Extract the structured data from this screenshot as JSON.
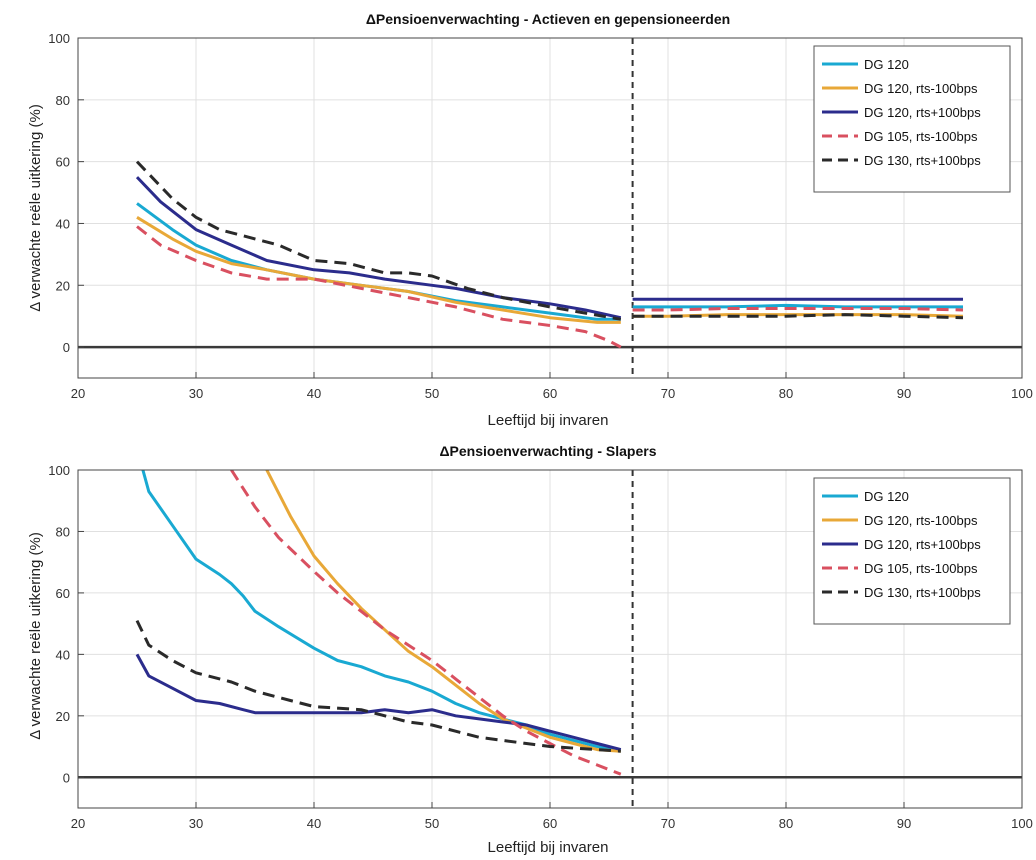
{
  "colors": {
    "DG 120": "#19a9d2",
    "DG 120, rts-100bps": "#e8a838",
    "DG 120, rts+100bps": "#2b2c8c",
    "DG 105, rts-100bps": "#d95060",
    "DG 130, rts+100bps": "#2a2a2a",
    "zero_line": "#3a3a3a",
    "grid": "#e0e0e0",
    "vline": "#333333"
  },
  "chart_data": [
    {
      "type": "line",
      "title": "ΔPensioenverwachting - Actieven en gepensioneerden",
      "xlabel": "Leeftijd bij invaren",
      "ylabel": "Δ verwachte reële uitkering (%)",
      "xlim": [
        20,
        100
      ],
      "ylim": [
        -10,
        100
      ],
      "xticks": [
        20,
        30,
        40,
        50,
        60,
        70,
        80,
        90,
        100
      ],
      "yticks": [
        0,
        20,
        40,
        60,
        80,
        100
      ],
      "grid": true,
      "legend_position": "top-right",
      "vline_x": 67,
      "zero_line": true,
      "series": [
        {
          "name": "DG 120",
          "dash": "solid",
          "segments": [
            {
              "x": [
                25,
                28,
                30,
                33,
                36,
                40,
                44,
                48,
                52,
                56,
                60,
                64,
                66
              ],
              "y": [
                46.5,
                38,
                33,
                28,
                25,
                22,
                20,
                18,
                15,
                13,
                11,
                9,
                9
              ]
            },
            {
              "x": [
                67,
                70,
                75,
                80,
                85,
                90,
                95
              ],
              "y": [
                13,
                13,
                13,
                13.5,
                13,
                13,
                13
              ]
            }
          ]
        },
        {
          "name": "DG 120, rts-100bps",
          "dash": "solid",
          "segments": [
            {
              "x": [
                25,
                28,
                30,
                33,
                36,
                40,
                44,
                48,
                52,
                56,
                60,
                64,
                66
              ],
              "y": [
                42,
                35,
                31,
                27,
                25,
                22,
                20,
                18,
                14.5,
                12,
                9.5,
                8,
                8
              ]
            },
            {
              "x": [
                67,
                70,
                75,
                80,
                85,
                90,
                95
              ],
              "y": [
                10,
                10,
                10.5,
                10.5,
                10.5,
                10.5,
                10
              ]
            }
          ]
        },
        {
          "name": "DG 120, rts+100bps",
          "dash": "solid",
          "segments": [
            {
              "x": [
                25,
                27,
                30,
                33,
                36,
                40,
                43,
                46,
                50,
                52,
                56,
                60,
                63,
                66
              ],
              "y": [
                55,
                47,
                38,
                33,
                28,
                25,
                24,
                22,
                20,
                19,
                16,
                14,
                12,
                9.5
              ]
            },
            {
              "x": [
                67,
                70,
                75,
                80,
                85,
                90,
                95
              ],
              "y": [
                15.5,
                15.5,
                15.5,
                15.5,
                15.5,
                15.5,
                15.5
              ]
            }
          ]
        },
        {
          "name": "DG 105, rts-100bps",
          "dash": "dashed",
          "segments": [
            {
              "x": [
                25,
                27,
                30,
                33,
                36,
                40,
                44,
                48,
                52,
                56,
                60,
                63,
                65,
                66
              ],
              "y": [
                39,
                33,
                28,
                24,
                22,
                22,
                19,
                16,
                13,
                9,
                7,
                5,
                2,
                0
              ]
            },
            {
              "x": [
                67,
                70,
                75,
                80,
                85,
                90,
                95
              ],
              "y": [
                12,
                12,
                12.5,
                12.5,
                12.5,
                12.5,
                12
              ]
            }
          ]
        },
        {
          "name": "DG 130, rts+100bps",
          "dash": "dashed",
          "segments": [
            {
              "x": [
                25,
                28,
                30,
                32,
                35,
                37,
                40,
                43,
                46,
                48,
                50,
                53,
                56,
                60,
                63,
                66
              ],
              "y": [
                60,
                48,
                42,
                38,
                35,
                33,
                28,
                27,
                24,
                24,
                23,
                19,
                16,
                13,
                11,
                9
              ]
            },
            {
              "x": [
                67,
                70,
                75,
                80,
                85,
                90,
                95
              ],
              "y": [
                10,
                10,
                10,
                10,
                10.5,
                10,
                9.5
              ]
            }
          ]
        }
      ]
    },
    {
      "type": "line",
      "title": "ΔPensioenverwachting - Slapers",
      "xlabel": "Leeftijd bij invaren",
      "ylabel": "Δ verwachte reële uitkering (%)",
      "xlim": [
        20,
        100
      ],
      "ylim": [
        -10,
        100
      ],
      "xticks": [
        20,
        30,
        40,
        50,
        60,
        70,
        80,
        90,
        100
      ],
      "yticks": [
        0,
        20,
        40,
        60,
        80,
        100
      ],
      "grid": true,
      "legend_position": "top-right",
      "vline_x": 67,
      "zero_line": true,
      "series": [
        {
          "name": "DG 120",
          "dash": "solid",
          "segments": [
            {
              "x": [
                25.5,
                26,
                28,
                30,
                32,
                33,
                34,
                35,
                37,
                40,
                42,
                44,
                46,
                48,
                50,
                52,
                54,
                56,
                58,
                60,
                62,
                64,
                66
              ],
              "y": [
                100,
                93,
                82,
                71,
                66,
                63,
                59,
                54,
                49,
                42,
                38,
                36,
                33,
                31,
                28,
                24,
                21,
                19,
                17,
                14,
                12,
                10,
                8.5
              ]
            }
          ]
        },
        {
          "name": "DG 120, rts-100bps",
          "dash": "solid",
          "segments": [
            {
              "x": [
                36,
                38,
                40,
                42,
                44,
                46,
                48,
                50,
                52,
                54,
                56,
                58,
                60,
                62,
                64,
                66
              ],
              "y": [
                100,
                85,
                72,
                63,
                55,
                48,
                41,
                36,
                30,
                24,
                19,
                16,
                13,
                11,
                9,
                8.5
              ]
            }
          ]
        },
        {
          "name": "DG 120, rts+100bps",
          "dash": "solid",
          "segments": [
            {
              "x": [
                25,
                26,
                28,
                30,
                32,
                34,
                35,
                37,
                40,
                44,
                46,
                48,
                50,
                52,
                54,
                56,
                58,
                60,
                62,
                64,
                66
              ],
              "y": [
                40,
                33,
                29,
                25,
                24,
                22,
                21,
                21,
                21,
                21,
                22,
                21,
                22,
                20,
                19,
                18,
                17,
                15,
                13,
                11,
                9
              ]
            }
          ]
        },
        {
          "name": "DG 105, rts-100bps",
          "dash": "dashed",
          "segments": [
            {
              "x": [
                33,
                35,
                37,
                40,
                42,
                44,
                46,
                48,
                50,
                52,
                54,
                56,
                58,
                60,
                62,
                64,
                66
              ],
              "y": [
                100,
                88,
                78,
                67,
                60,
                54,
                48,
                43,
                38,
                32,
                26,
                20,
                15,
                11,
                7,
                4,
                1
              ]
            }
          ]
        },
        {
          "name": "DG 130, rts+100bps",
          "dash": "dashed",
          "segments": [
            {
              "x": [
                25,
                26,
                28,
                30,
                33,
                35,
                38,
                40,
                44,
                46,
                48,
                50,
                52,
                54,
                56,
                58,
                60,
                62,
                64,
                66
              ],
              "y": [
                51,
                43,
                38,
                34,
                31,
                28,
                25,
                23,
                22,
                20,
                18,
                17,
                15,
                13,
                12,
                11,
                10,
                9.5,
                9,
                8.5
              ]
            }
          ]
        }
      ]
    }
  ]
}
